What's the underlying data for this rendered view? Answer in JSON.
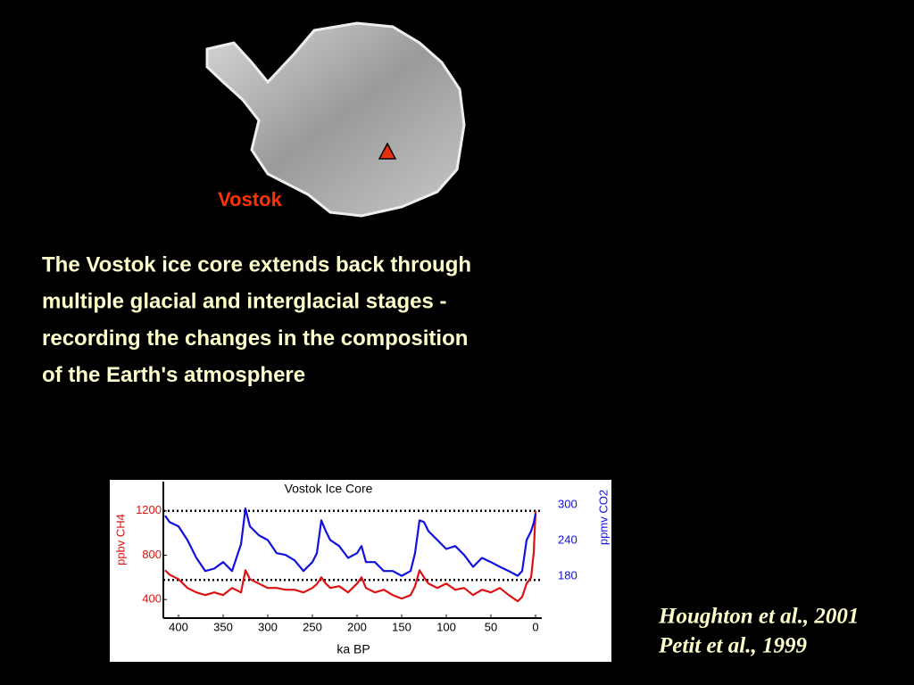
{
  "map_label": "Vostok",
  "body_lines": [
    "The Vostok ice core extends back through",
    "multiple glacial and interglacial stages -",
    "recording the changes in the composition",
    "of the Earth's atmosphere"
  ],
  "citations": [
    "Houghton et al., 2001",
    "Petit et al., 1999"
  ],
  "chart_data": {
    "type": "line",
    "title": "Vostok Ice Core",
    "x_label": "ka BP",
    "y_label": "ppbv CH4",
    "y2_label": "ppmv CO2",
    "x": [
      415,
      410,
      400,
      390,
      380,
      370,
      360,
      350,
      340,
      330,
      325,
      320,
      310,
      300,
      290,
      280,
      270,
      260,
      250,
      245,
      240,
      235,
      230,
      220,
      210,
      200,
      195,
      190,
      180,
      170,
      160,
      150,
      140,
      135,
      130,
      125,
      120,
      110,
      100,
      90,
      80,
      70,
      60,
      50,
      40,
      30,
      20,
      15,
      10,
      5,
      2,
      0
    ],
    "series": [
      {
        "name": "CH4",
        "color": "#dd1111",
        "values": [
          664,
          624,
          584,
          504,
          464,
          440,
          464,
          440,
          504,
          464,
          664,
          584,
          544,
          504,
          504,
          488,
          488,
          464,
          504,
          540,
          600,
          544,
          504,
          520,
          464,
          544,
          600,
          504,
          464,
          488,
          440,
          408,
          440,
          520,
          664,
          600,
          544,
          504,
          544,
          488,
          504,
          440,
          488,
          464,
          504,
          440,
          384,
          424,
          544,
          600,
          824,
          1200
        ]
      },
      {
        "name": "CO2",
        "color": "#1111dd",
        "axis": "y2",
        "values": [
          282,
          271,
          264,
          241,
          211,
          189,
          193,
          204,
          189,
          234,
          294,
          264,
          249,
          241,
          219,
          216,
          207,
          189,
          204,
          219,
          274,
          256,
          241,
          231,
          211,
          219,
          231,
          204,
          204,
          189,
          189,
          181,
          189,
          219,
          274,
          271,
          256,
          241,
          226,
          231,
          216,
          196,
          211,
          204,
          196,
          189,
          181,
          189,
          241,
          256,
          270,
          285
        ]
      }
    ],
    "xlim": [
      417,
      -7
    ],
    "xticks": [
      400,
      350,
      300,
      250,
      200,
      150,
      100,
      50,
      0
    ],
    "ylim": [
      232,
      1464
    ],
    "yticks": [
      400,
      800,
      1200
    ],
    "y2lim": [
      110,
      339
    ],
    "y2ticks": [
      180,
      240,
      300
    ],
    "reference_lines": [
      1200,
      576
    ]
  }
}
